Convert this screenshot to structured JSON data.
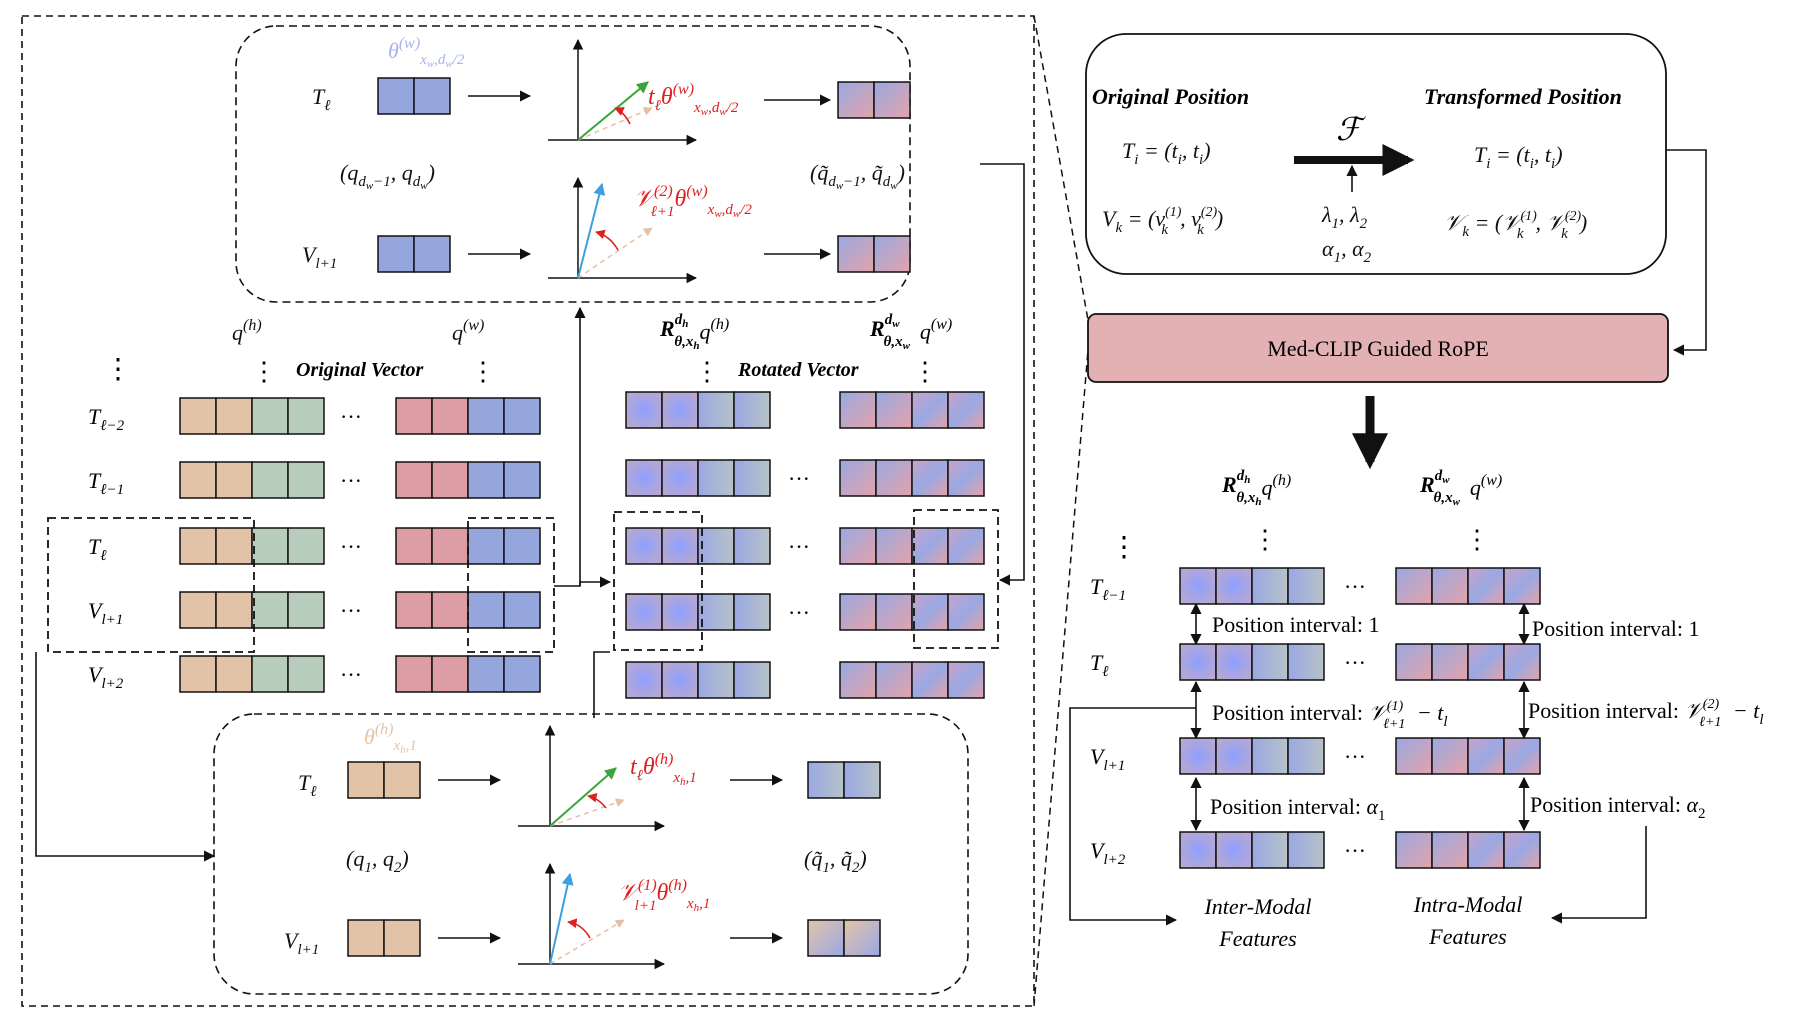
{
  "left_panel": {
    "original_vector_label": "Original Vector",
    "rotated_vector_label": "Rotated Vector",
    "rows": [
      "T",
      "T",
      "T",
      "V",
      "V"
    ],
    "ellipsis": "···",
    "q_h": "q(h)",
    "q_w": "q(w)",
    "rot_h": "R q(h)",
    "rot_w": "R q(w)"
  },
  "top_box": {
    "theta_label": "θ(w) x_w,d_w/2",
    "row1_label": "T",
    "row2_label": "V",
    "pair_in": "(q d_w−1 , q d_w)",
    "pair_out": "(q̃ d_w−1 , q̃ d_w)",
    "angle1": "t θ(w) x_w,d_w/2",
    "angle2": "V(2) θ(w) x_w,d_w/2"
  },
  "bottom_box": {
    "theta_label": "θ(h) x_h,1",
    "pair_in": "(q1 , q2)",
    "pair_out": "(q̃1 , q̃2)",
    "angle1": "t θ(h) x_h,1",
    "angle2": "V(1) θ(h) x_h,1"
  },
  "right_panel": {
    "original_position_title": "Original Position",
    "transformed_position_title": "Transformed Position",
    "orig_T": "Tᵢ = (tᵢ, tᵢ)",
    "orig_V": "Vₖ = (vₖ(1), vₖ(2))",
    "trans_T": "Tᵢ = (tᵢ, tᵢ)",
    "trans_V": "Vₖ = (Vₖ(1), Vₖ(2))",
    "transform_symbol": "F",
    "params_line1": "λ1, λ2",
    "params_line2": "α1, α2",
    "module_label": "Med-CLIP Guided RoPE",
    "interval_labels": {
      "i1_left": "Position interval: 1",
      "i1_right": "Position interval: 1",
      "i2_left": "Position interval: V(1) − t",
      "i2_right": "Position interval: V(2) − t",
      "i3_left": "Position interval: α1",
      "i3_right": "Position interval: α2"
    },
    "inter_modal": "Inter-Modal Features",
    "intra_modal": "Intra-Modal Features"
  },
  "colors": {
    "tan": "#e3c3a8",
    "green": "#b7ccbb",
    "pink": "#dc9ea4",
    "blue": "#95a6dc",
    "module_fill": "#e3b0b3",
    "red_text": "#e02020",
    "green_arrow": "#3aa53a",
    "blue_arrow": "#3aa0e0"
  }
}
